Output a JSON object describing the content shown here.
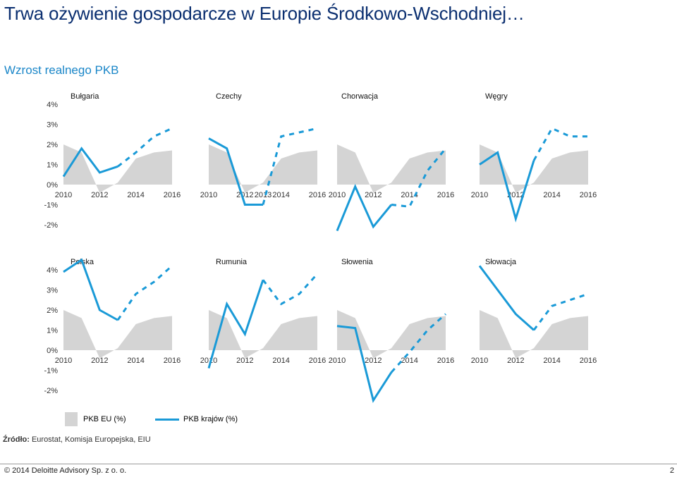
{
  "title": "Trwa ożywienie gospodarcze w Europie Środkowo-Wschodniej…",
  "subtitle": "Wzrost realnego PKB",
  "legend": {
    "eu": "PKB EU (%)",
    "country": "PKB krajów (%)"
  },
  "source": {
    "label": "Źródło:",
    "text": " Eurostat, Komisja Europejska, EIU"
  },
  "footer": {
    "copyright": "© 2014 Deloitte Advisory Sp. z o. o.",
    "page": "2"
  },
  "colors": {
    "country": "#1a9ad7",
    "eu": "#d4d4d4",
    "title": "#0b2f70",
    "subtitle": "#1a86c8"
  },
  "chart_data": {
    "type": "area",
    "ytick_labels": [
      "4%",
      "3%",
      "2%",
      "1%",
      "0%",
      "-1%",
      "-2%"
    ],
    "ytick_values": [
      4,
      3,
      2,
      1,
      0,
      -1,
      -2
    ],
    "ylim": [
      -2,
      4
    ],
    "x_years": [
      2010,
      2011,
      2012,
      2013,
      2014,
      2015,
      2016
    ],
    "eu_series": {
      "name": "PKB EU (%)",
      "values": [
        2.0,
        1.6,
        -0.4,
        0.1,
        1.3,
        1.6,
        1.7
      ]
    },
    "xtick_labels_default": [
      "2010",
      "2012",
      "2014",
      "2016"
    ],
    "panels": [
      {
        "name": "Bułgaria",
        "row": 0,
        "col": 0,
        "values": [
          0.4,
          1.8,
          0.6,
          0.9,
          1.6,
          2.4,
          2.8
        ],
        "forecast_from": 3
      },
      {
        "name": "Czechy",
        "row": 0,
        "col": 1,
        "values": [
          2.3,
          1.8,
          -1.0,
          -1.0,
          2.4,
          2.6,
          2.8
        ],
        "forecast_from": 3,
        "xtick_labels": [
          "2010",
          "2012",
          "2013",
          "2014",
          "2016"
        ]
      },
      {
        "name": "Chorwacja",
        "row": 0,
        "col": 2,
        "values": [
          -2.3,
          -0.1,
          -2.1,
          -1.0,
          -1.1,
          0.7,
          1.8
        ],
        "forecast_from": 3
      },
      {
        "name": "Węgry",
        "row": 0,
        "col": 3,
        "values": [
          1.0,
          1.6,
          -1.7,
          1.2,
          2.8,
          2.4,
          2.4
        ],
        "forecast_from": 3
      },
      {
        "name": "Polska",
        "row": 1,
        "col": 0,
        "values": [
          3.9,
          4.5,
          2.0,
          1.5,
          2.8,
          3.4,
          4.2
        ],
        "forecast_from": 3
      },
      {
        "name": "Rumunia",
        "row": 1,
        "col": 1,
        "values": [
          -0.9,
          2.3,
          0.8,
          3.5,
          2.3,
          2.8,
          3.8
        ],
        "forecast_from": 3
      },
      {
        "name": "Słowenia",
        "row": 1,
        "col": 2,
        "values": [
          1.2,
          1.1,
          -2.5,
          -1.1,
          -0.1,
          1.0,
          1.8
        ],
        "forecast_from": 3
      },
      {
        "name": "Słowacja",
        "row": 1,
        "col": 3,
        "values": [
          4.2,
          3.0,
          1.8,
          1.0,
          2.2,
          2.5,
          2.8
        ],
        "forecast_from": 3
      }
    ]
  }
}
